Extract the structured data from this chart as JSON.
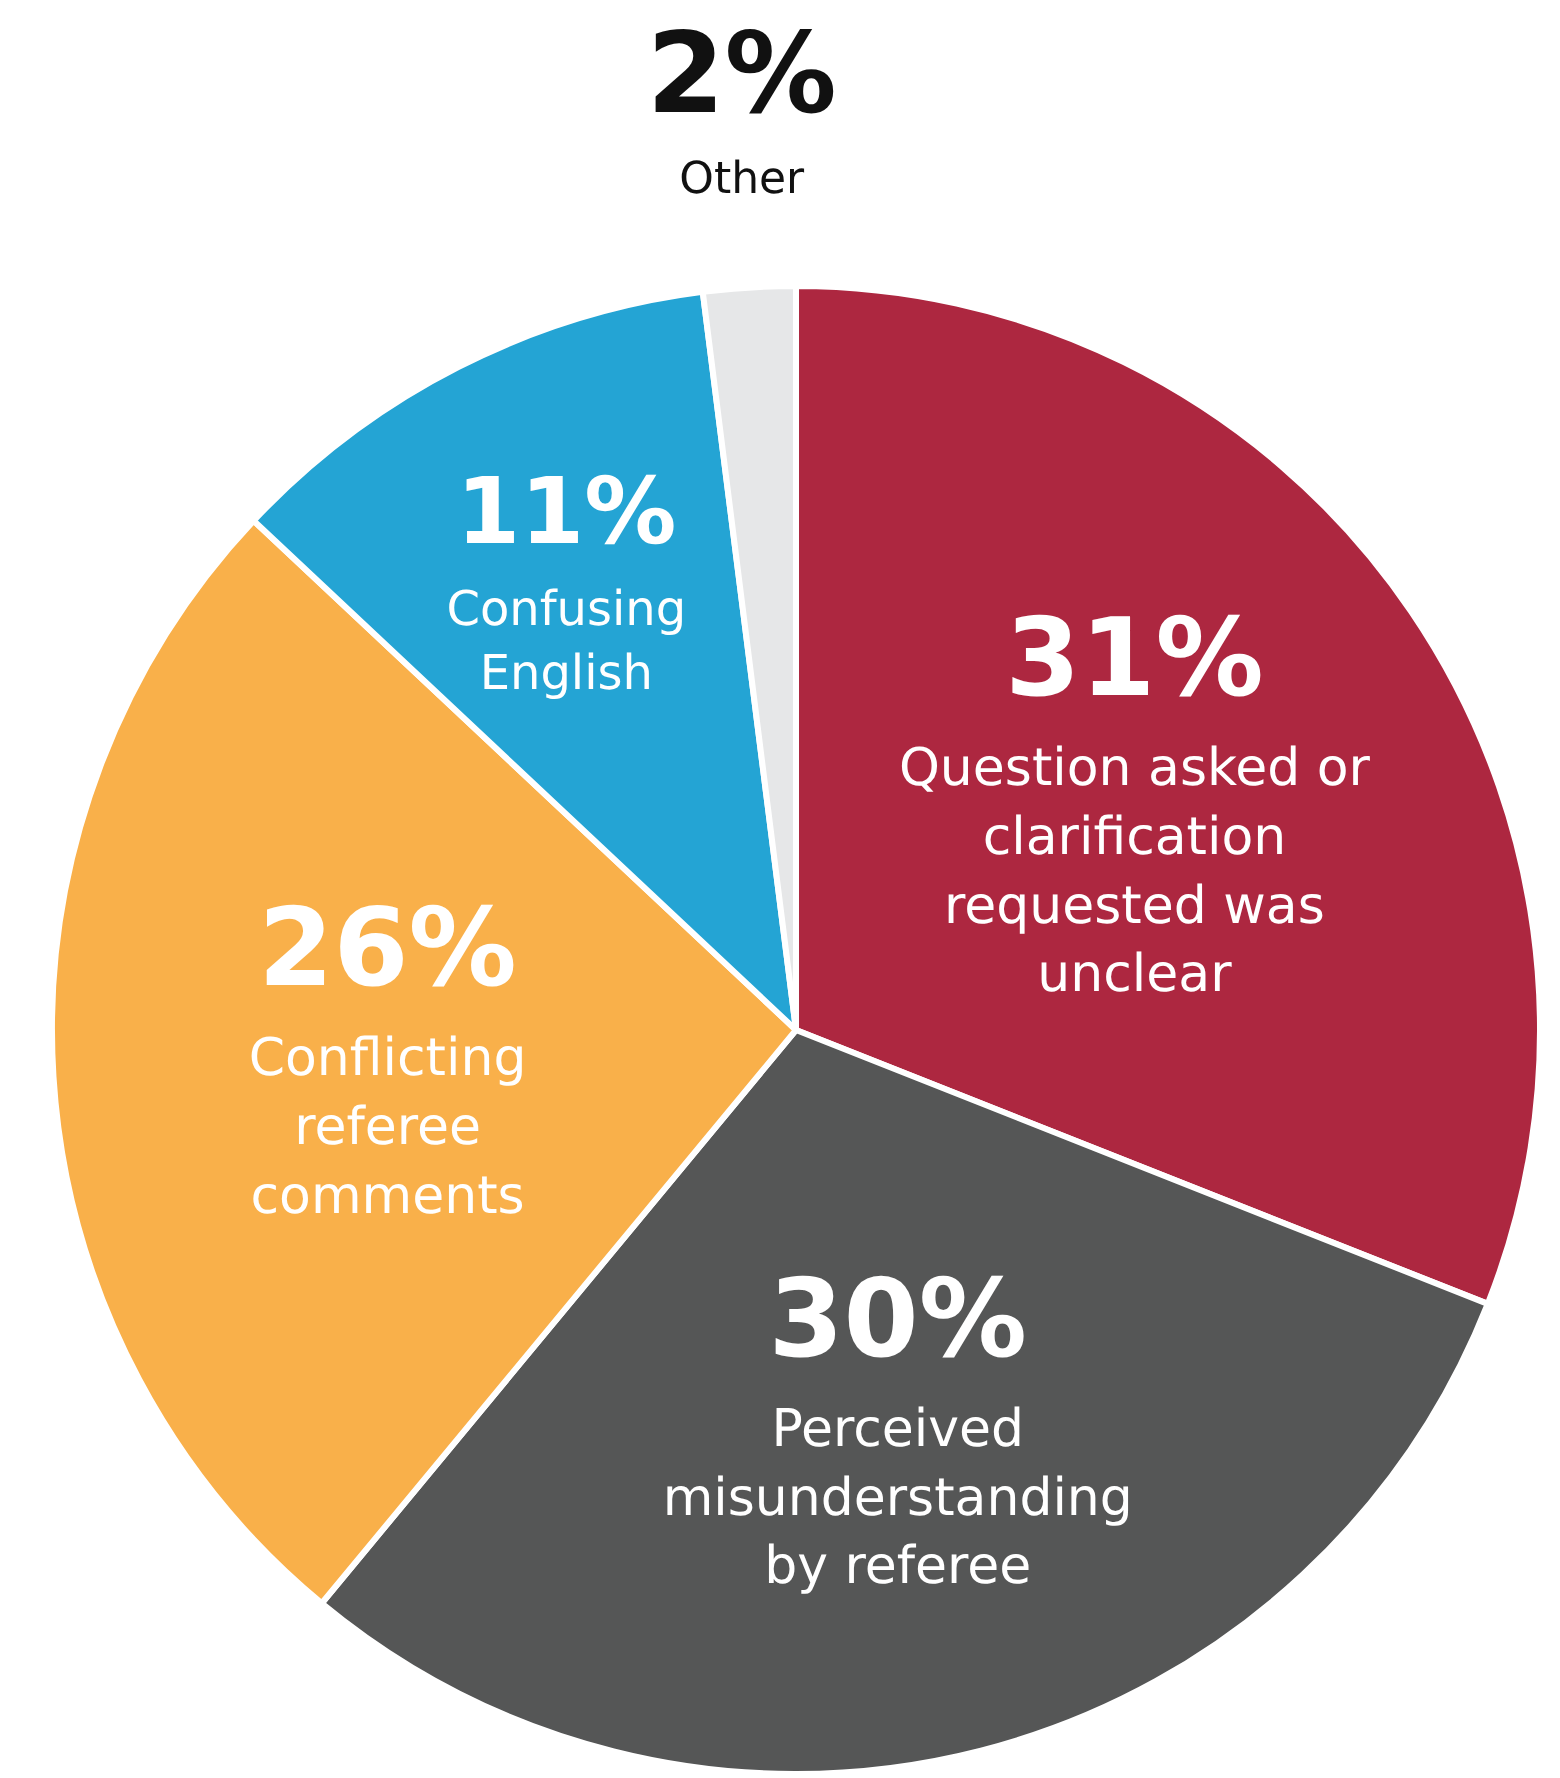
{
  "chart_data": {
    "type": "pie",
    "categories": [
      "Question asked or clarification requested was unclear",
      "Perceived misunderstanding by referee",
      "Conflicting referee comments",
      "Confusing English",
      "Other"
    ],
    "values": [
      31,
      30,
      26,
      11,
      2
    ],
    "value_labels": [
      "31%",
      "30%",
      "26%",
      "11%",
      "2%"
    ],
    "colors": [
      "#ad2740",
      "#555656",
      "#f9b04a",
      "#24a4d4",
      "#e6e7e8"
    ]
  }
}
